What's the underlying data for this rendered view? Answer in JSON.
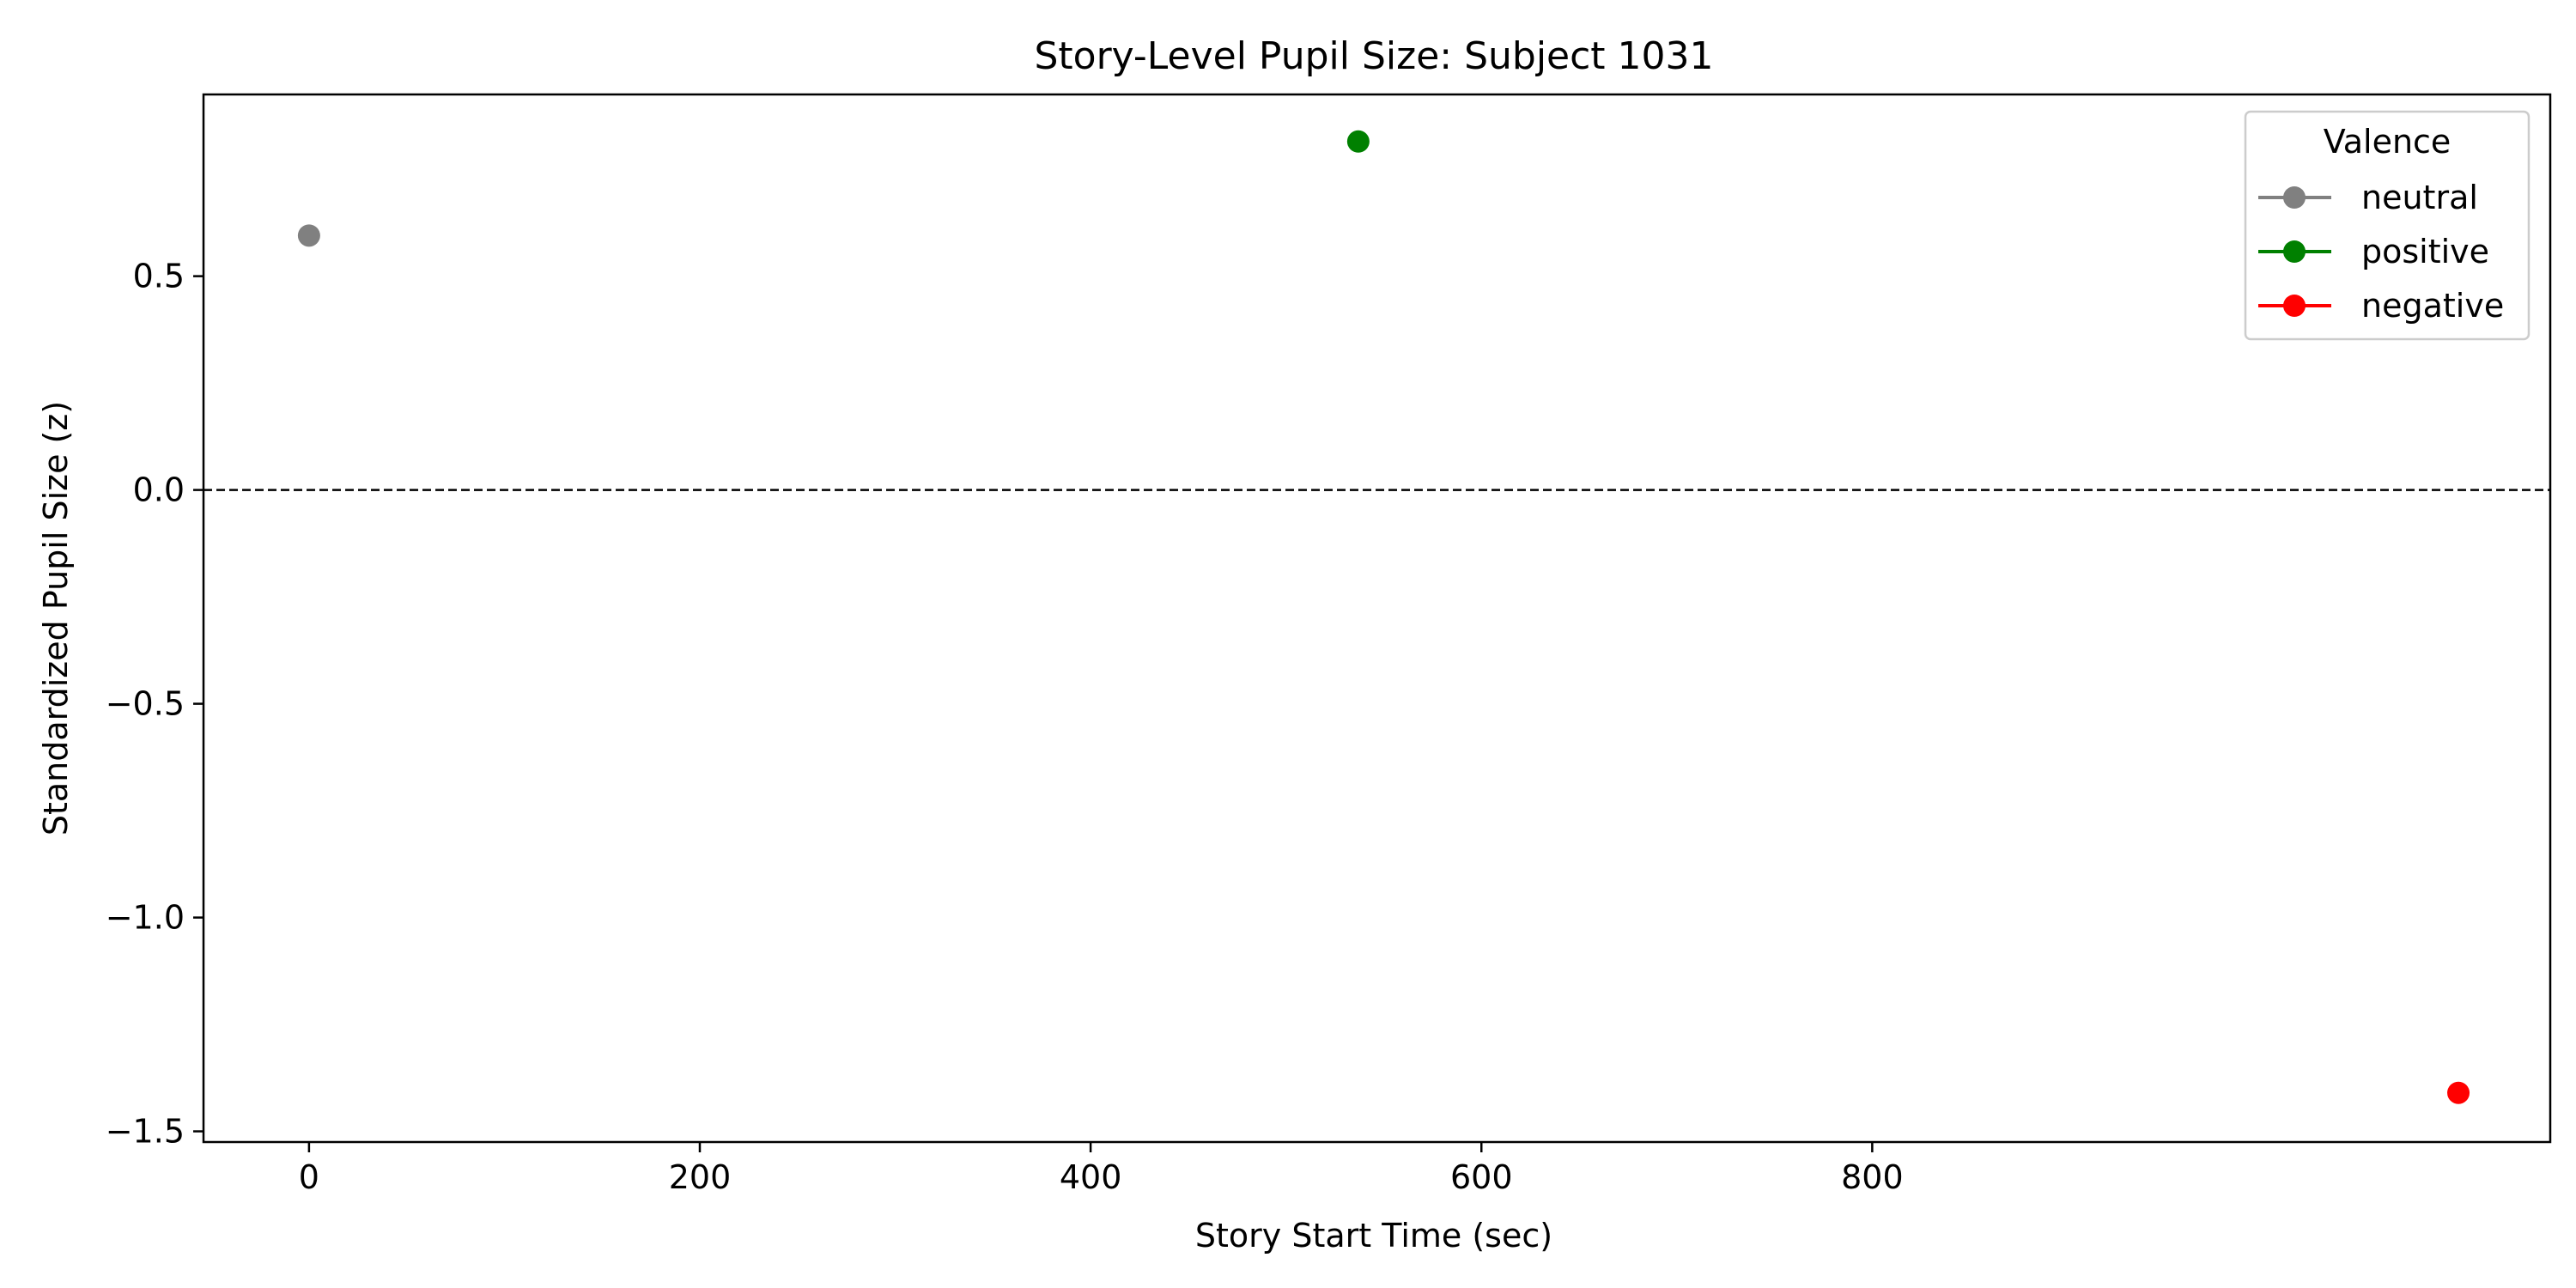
{
  "chart_data": {
    "type": "scatter",
    "title": "Story-Level Pupil Size: Subject 1031",
    "xlabel": "Story Start Time (sec)",
    "ylabel": "Standardized Pupil Size (z)",
    "xlim": [
      -54,
      1147
    ],
    "ylim": [
      -1.525,
      0.925
    ],
    "xticks": [
      0,
      200,
      400,
      600,
      800
    ],
    "xtick_labels": [
      "0",
      "200",
      "400",
      "600",
      "800"
    ],
    "yticks": [
      0.5,
      0.0,
      -0.5,
      -1.0,
      -1.5
    ],
    "ytick_labels": [
      "0.5",
      "0.0",
      "−0.5",
      "−1.0",
      "−1.5"
    ],
    "reference_line": {
      "y": 0.0,
      "style": "dashed",
      "color": "#000000"
    },
    "grid": false,
    "legend": {
      "title": "Valence",
      "placement": "top-right"
    },
    "series": [
      {
        "name": "neutral",
        "color": "#808080",
        "points": [
          {
            "x": 0,
            "y": 0.595
          }
        ]
      },
      {
        "name": "positive",
        "color": "#008000",
        "points": [
          {
            "x": 537,
            "y": 0.815
          }
        ]
      },
      {
        "name": "negative",
        "color": "#ff0000",
        "points": [
          {
            "x": 1100,
            "y": -1.41
          }
        ]
      }
    ]
  }
}
